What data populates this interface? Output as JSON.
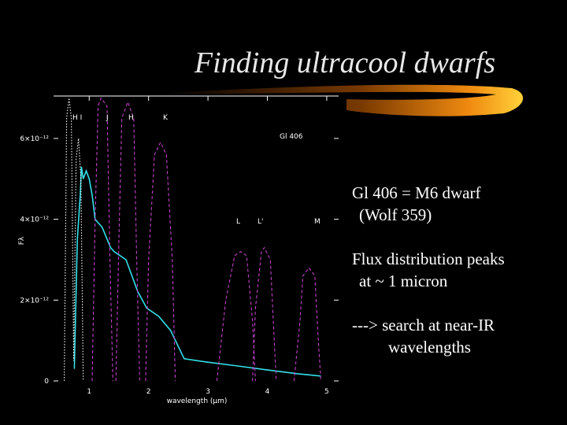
{
  "title": "Finding ultracool dwarfs",
  "bullets": [
    "Gl 406 = M6 dwarf",
    "(Wolf 359)",
    "Flux distribution peaks",
    "at ~ 1 micron",
    "---> search at near-IR",
    "wavelengths"
  ],
  "chart_data": {
    "type": "line",
    "xlabel": "wavelength (μm)",
    "ylabel": "Fλ",
    "xlim": [
      0.4,
      5.2
    ],
    "xticks": [
      1,
      2,
      3,
      4,
      5
    ],
    "ylim": [
      0,
      7.05e-12
    ],
    "yticks": [
      {
        "value": 0,
        "label": "0"
      },
      {
        "value": 2e-12,
        "label": "2×10⁻¹²"
      },
      {
        "value": 4e-12,
        "label": "4×10⁻¹²"
      },
      {
        "value": 6e-12,
        "label": "6×10⁻¹²"
      }
    ],
    "series": [
      {
        "name": "Gl 406",
        "color": "#33e0e8",
        "style": "solid",
        "x": [
          0.75,
          0.8,
          0.85,
          0.87,
          0.9,
          0.95,
          1.0,
          1.05,
          1.1,
          1.22,
          1.36,
          1.42,
          1.62,
          1.82,
          1.97,
          2.17,
          2.37,
          2.6,
          2.97,
          3.5,
          4.0,
          4.5,
          4.9
        ],
        "values": [
          3e-13,
          3.5e-12,
          4.6e-12,
          5.3e-12,
          5e-12,
          5.2e-12,
          5e-12,
          4.6e-12,
          4e-12,
          3.8e-12,
          3.3e-12,
          3.2e-12,
          3e-12,
          2.2e-12,
          1.8e-12,
          1.6e-12,
          1.25e-12,
          5.5e-13,
          4.7e-13,
          3.7e-13,
          2.7e-13,
          1.8e-13,
          1.2e-13
        ]
      },
      {
        "name": "H I",
        "color": "#ffffff",
        "style": "dotted",
        "x": [
          0.58,
          0.62,
          0.66,
          0.7,
          0.74,
          0.78,
          0.82,
          0.86,
          0.9
        ],
        "values": [
          0,
          6.5e-12,
          7e-12,
          6.5e-12,
          5e-13,
          5.5e-12,
          6e-12,
          5e-12,
          0
        ]
      },
      {
        "name": "J",
        "color": "#c040c8",
        "style": "dashed",
        "x": [
          1.05,
          1.1,
          1.15,
          1.2,
          1.3,
          1.35,
          1.4
        ],
        "values": [
          0,
          4e-12,
          6.8e-12,
          7e-12,
          6.8e-12,
          3e-12,
          0
        ]
      },
      {
        "name": "H",
        "color": "#c040c8",
        "style": "dashed",
        "x": [
          1.45,
          1.5,
          1.55,
          1.65,
          1.75,
          1.8,
          1.85
        ],
        "values": [
          0,
          3.5e-12,
          6.5e-12,
          6.9e-12,
          6.5e-12,
          3e-12,
          0
        ]
      },
      {
        "name": "K",
        "color": "#c040c8",
        "style": "dashed",
        "x": [
          1.95,
          2.0,
          2.1,
          2.2,
          2.3,
          2.4,
          2.45
        ],
        "values": [
          0,
          3e-12,
          5.6e-12,
          5.9e-12,
          5.6e-12,
          3e-12,
          0
        ]
      },
      {
        "name": "L",
        "color": "#c040c8",
        "style": "dashed",
        "x": [
          3.15,
          3.3,
          3.45,
          3.55,
          3.65,
          3.75,
          3.8
        ],
        "values": [
          0,
          2e-12,
          3.1e-12,
          3.2e-12,
          3.1e-12,
          1.5e-12,
          0
        ]
      },
      {
        "name": "L'",
        "color": "#c040c8",
        "style": "dashed",
        "x": [
          3.75,
          3.8,
          3.9,
          3.95,
          4.05,
          4.1,
          4.15
        ],
        "values": [
          0,
          1.8e-12,
          3.2e-12,
          3.3e-12,
          3e-12,
          1.5e-12,
          0
        ]
      },
      {
        "name": "M",
        "color": "#c040c8",
        "style": "dashed",
        "x": [
          4.45,
          4.55,
          4.6,
          4.7,
          4.8,
          4.85,
          4.9
        ],
        "values": [
          0,
          1.5e-12,
          2.6e-12,
          2.8e-12,
          2.6e-12,
          1.2e-12,
          0
        ]
      }
    ]
  }
}
